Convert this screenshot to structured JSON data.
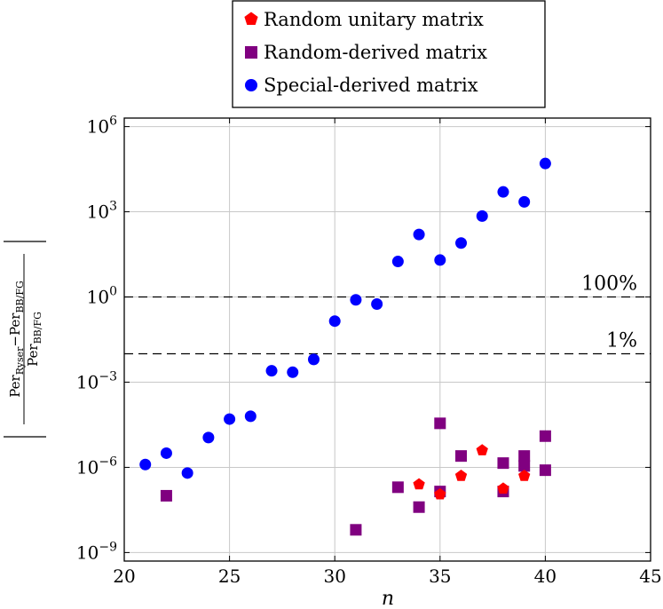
{
  "chart_data": {
    "type": "scatter",
    "xlabel": "n",
    "ylabel": {
      "numerator": "Per",
      "numerator_sub1": "Ryser",
      "minus": "−Per",
      "numerator_sub2": "BB/FG",
      "denominator": "Per",
      "denominator_sub": "BB/FG"
    },
    "x_range": [
      20,
      45
    ],
    "x_ticks": [
      20,
      25,
      30,
      35,
      40,
      45
    ],
    "y_scale": "log",
    "y_range_log10": [
      -9.3,
      6.3
    ],
    "y_ticks": [
      {
        "exp": 6,
        "base": "10",
        "sup": "6"
      },
      {
        "exp": 3,
        "base": "10",
        "sup": "3"
      },
      {
        "exp": 0,
        "base": "10",
        "sup": "0"
      },
      {
        "exp": -3,
        "base": "10",
        "sup": "−3"
      },
      {
        "exp": -6,
        "base": "10",
        "sup": "−6"
      },
      {
        "exp": -9,
        "base": "10",
        "sup": "−9"
      }
    ],
    "grid": true,
    "legend_placement": "top (above plot)",
    "reference_lines": [
      {
        "log10": 0,
        "label": "100%"
      },
      {
        "log10": -2,
        "label": "1%"
      }
    ],
    "series": [
      {
        "name": "Random unitary matrix",
        "marker": "pentagon",
        "color": "#ff0000",
        "points": [
          {
            "x": 34,
            "y_log10": -6.6
          },
          {
            "x": 35,
            "y_log10": -6.95
          },
          {
            "x": 36,
            "y_log10": -6.3
          },
          {
            "x": 37,
            "y_log10": -5.4
          },
          {
            "x": 38,
            "y_log10": -6.75
          },
          {
            "x": 39,
            "y_log10": -6.3
          }
        ]
      },
      {
        "name": "Random-derived matrix",
        "marker": "square",
        "color": "#800080",
        "points": [
          {
            "x": 22,
            "y_log10": -7.0
          },
          {
            "x": 31,
            "y_log10": -8.2
          },
          {
            "x": 33,
            "y_log10": -6.7
          },
          {
            "x": 34,
            "y_log10": -7.4
          },
          {
            "x": 35,
            "y_log10": -6.85
          },
          {
            "x": 35,
            "y_log10": -4.45
          },
          {
            "x": 36,
            "y_log10": -5.6
          },
          {
            "x": 38,
            "y_log10": -5.85
          },
          {
            "x": 38,
            "y_log10": -6.85
          },
          {
            "x": 39,
            "y_log10": -5.6
          },
          {
            "x": 39,
            "y_log10": -5.95
          },
          {
            "x": 40,
            "y_log10": -4.9
          },
          {
            "x": 40,
            "y_log10": -6.1
          }
        ]
      },
      {
        "name": "Special-derived matrix",
        "marker": "circle",
        "color": "#0000ff",
        "points": [
          {
            "x": 21,
            "y_log10": -5.9
          },
          {
            "x": 22,
            "y_log10": -5.5
          },
          {
            "x": 23,
            "y_log10": -6.2
          },
          {
            "x": 24,
            "y_log10": -4.95
          },
          {
            "x": 25,
            "y_log10": -4.3
          },
          {
            "x": 26,
            "y_log10": -4.2
          },
          {
            "x": 27,
            "y_log10": -2.6
          },
          {
            "x": 28,
            "y_log10": -2.65
          },
          {
            "x": 29,
            "y_log10": -2.2
          },
          {
            "x": 30,
            "y_log10": -0.85
          },
          {
            "x": 31,
            "y_log10": -0.1
          },
          {
            "x": 32,
            "y_log10": -0.25
          },
          {
            "x": 33,
            "y_log10": 1.25
          },
          {
            "x": 34,
            "y_log10": 2.2
          },
          {
            "x": 35,
            "y_log10": 1.3
          },
          {
            "x": 36,
            "y_log10": 1.9
          },
          {
            "x": 37,
            "y_log10": 2.85
          },
          {
            "x": 38,
            "y_log10": 3.7
          },
          {
            "x": 39,
            "y_log10": 3.35
          },
          {
            "x": 40,
            "y_log10": 4.7
          }
        ]
      }
    ]
  }
}
